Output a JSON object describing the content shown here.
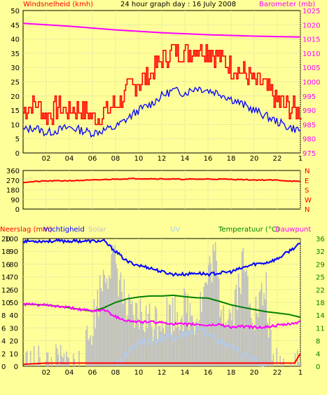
{
  "header": {
    "left_label": "Windsnelheid (kmh)",
    "title": "24 hour graph day : 16 July 2008",
    "right_label": "Barometer (mb)"
  },
  "colors": {
    "background": "#ffff99",
    "plot_bg": "#ffff99",
    "grid": "#c8c8a0",
    "gust": "#ff0000",
    "wind": "#0000ff",
    "barometer": "#ff00ff",
    "direction": "#ff0000",
    "humidity": "#0000ff",
    "temperature": "#008000",
    "dewpoint": "#ff00ff",
    "solar": "#c0c0c0",
    "uv": "#aaccff",
    "rain": "#ff0000",
    "right_axis_text": "#008000"
  },
  "chart_data": [
    {
      "type": "line",
      "name": "wind-barometer",
      "x_ticks": [
        "02",
        "04",
        "06",
        "08",
        "10",
        "12",
        "14",
        "16",
        "18",
        "20",
        "22",
        "1"
      ],
      "xlim": [
        0,
        24
      ],
      "ylim_left": [
        0,
        50
      ],
      "ylim_right": [
        975,
        1025
      ],
      "left_ticks": [
        0,
        5,
        10,
        15,
        20,
        25,
        30,
        35,
        40,
        45,
        50
      ],
      "right_ticks": [
        975,
        980,
        985,
        990,
        995,
        1000,
        1005,
        1010,
        1015,
        1020,
        1025
      ],
      "series": [
        {
          "key": "gust",
          "x": [
            0,
            1,
            2,
            3,
            4,
            5,
            6,
            7,
            8,
            9,
            10,
            11,
            12,
            13,
            14,
            15,
            16,
            17,
            18,
            19,
            20,
            21,
            22,
            23,
            24
          ],
          "values": [
            15,
            18,
            13,
            16,
            15,
            16,
            12,
            14,
            17,
            22,
            25,
            28,
            33,
            36,
            35,
            37,
            36,
            34,
            30,
            28,
            25,
            23,
            18,
            16,
            14
          ]
        },
        {
          "key": "wind",
          "x": [
            0,
            1,
            2,
            3,
            4,
            5,
            6,
            7,
            8,
            9,
            10,
            11,
            12,
            13,
            14,
            15,
            16,
            17,
            18,
            19,
            20,
            21,
            22,
            23,
            24
          ],
          "values": [
            8,
            9,
            7,
            8,
            9,
            8,
            7,
            8,
            9,
            12,
            15,
            17,
            20,
            22,
            21,
            23,
            22,
            21,
            19,
            17,
            15,
            13,
            11,
            9,
            8
          ]
        },
        {
          "key": "barometer",
          "x": [
            0,
            4,
            8,
            12,
            16,
            20,
            24
          ],
          "values": [
            1020.5,
            1019.5,
            1018.2,
            1017.2,
            1016.5,
            1016.0,
            1015.7
          ]
        }
      ]
    },
    {
      "type": "line",
      "name": "wind-direction",
      "xlim": [
        0,
        24
      ],
      "ylim": [
        0,
        360
      ],
      "left_ticks": [
        0,
        90,
        180,
        270,
        360
      ],
      "right_ticks": [
        "N",
        "W",
        "S",
        "E",
        "N"
      ],
      "series": [
        {
          "key": "direction",
          "x": [
            0,
            2,
            4,
            6,
            8,
            10,
            12,
            14,
            16,
            18,
            20,
            22,
            24
          ],
          "values": [
            250,
            262,
            265,
            270,
            280,
            285,
            282,
            278,
            280,
            278,
            272,
            270,
            255
          ]
        }
      ]
    },
    {
      "type": "line",
      "name": "rain-humidity-temperature",
      "labels": {
        "rain": "Neerslag (mm)",
        "humidity": "Vochtigheid",
        "solar": "Solar",
        "uv": "UV",
        "temperature": "Temperatuur (°C)",
        "dewpoint": "Dauwpunt"
      },
      "xlim": [
        0,
        24
      ],
      "ticks_humidity": [
        0,
        10,
        20,
        30,
        40,
        50,
        60,
        70,
        80,
        90,
        100
      ],
      "ticks_rain": [
        0,
        2,
        4,
        6,
        8,
        10,
        12,
        14,
        16,
        18,
        20
      ],
      "ticks_temp": [
        0,
        4,
        8,
        11,
        14,
        18,
        22,
        25,
        29,
        32,
        36
      ],
      "ylim_humidity": [
        0,
        100
      ],
      "ylim_temp": [
        0,
        36
      ],
      "series": [
        {
          "key": "humidity",
          "x": [
            0,
            2,
            4,
            6,
            7,
            8,
            9,
            10,
            11,
            12,
            13,
            14,
            15,
            16,
            17,
            18,
            19,
            20,
            21,
            22,
            23,
            24
          ],
          "values": [
            98,
            98,
            98,
            98,
            98,
            90,
            82,
            79,
            77,
            74,
            72,
            72,
            73,
            72,
            73,
            74,
            77,
            80,
            81,
            84,
            90,
            96
          ]
        },
        {
          "key": "temperature",
          "x": [
            0,
            2,
            4,
            6,
            7,
            8,
            9,
            10,
            11,
            12,
            13,
            14,
            15,
            16,
            17,
            18,
            19,
            20,
            21,
            22,
            23,
            24
          ],
          "values": [
            17.5,
            17.3,
            16.5,
            15.5,
            16.5,
            18.0,
            19.0,
            19.5,
            19.8,
            19.8,
            20.0,
            19.6,
            19.3,
            19.2,
            18.3,
            17.3,
            16.6,
            16.0,
            15.4,
            15.0,
            14.6,
            13.8
          ]
        },
        {
          "key": "dewpoint",
          "x": [
            0,
            2,
            4,
            6,
            7,
            8,
            9,
            10,
            11,
            12,
            13,
            14,
            15,
            16,
            17,
            18,
            19,
            20,
            21,
            22,
            23,
            24
          ],
          "values": [
            17.5,
            17.2,
            16.5,
            15.5,
            16.0,
            14.0,
            12.8,
            12.5,
            12.5,
            12.3,
            12.0,
            11.8,
            11.8,
            11.5,
            11.8,
            11.0,
            11.2,
            11.0,
            11.0,
            11.5,
            11.8,
            12.5
          ]
        },
        {
          "key": "solar",
          "x": [
            0,
            4,
            5,
            5.5,
            6,
            6.5,
            7,
            7.5,
            8,
            8.5,
            9,
            9.5,
            10,
            11,
            12,
            13,
            14,
            15,
            16,
            16.5,
            17,
            18,
            19,
            20,
            21,
            21.5,
            22,
            24
          ],
          "values": [
            0,
            0,
            0,
            15,
            35,
            55,
            75,
            80,
            80,
            60,
            40,
            35,
            40,
            35,
            40,
            42,
            45,
            40,
            70,
            90,
            50,
            40,
            80,
            40,
            60,
            0,
            0,
            0
          ]
        },
        {
          "key": "uv",
          "x": [
            8,
            9,
            10,
            11,
            12,
            13,
            14,
            15,
            16,
            17,
            18,
            19,
            20,
            21
          ],
          "values": [
            0,
            10,
            18,
            20,
            22,
            22,
            25,
            28,
            25,
            20,
            15,
            10,
            5,
            0
          ]
        },
        {
          "key": "rain",
          "x": [
            0,
            2,
            23.5,
            24
          ],
          "values": [
            0.3,
            0.5,
            0.5,
            2.0
          ]
        }
      ]
    }
  ]
}
